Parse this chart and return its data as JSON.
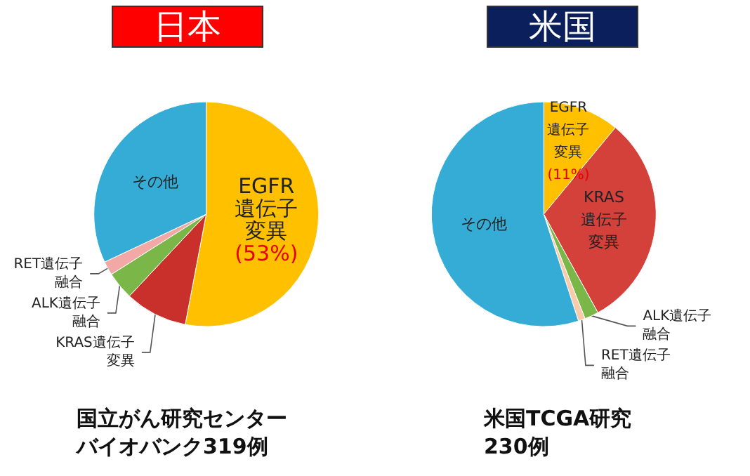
{
  "chart_data": [
    {
      "type": "pie",
      "title": "日本",
      "categories": [
        "EGFR遺伝子変異",
        "KRAS遺伝子変異",
        "ALK遺伝子融合",
        "RET遺伝子融合",
        "その他"
      ],
      "values": [
        53,
        9,
        4,
        2,
        32
      ],
      "value_labels": [
        "(53%)",
        null,
        null,
        null,
        null
      ],
      "colors": [
        "#ffc000",
        "#c9302c",
        "#7ab648",
        "#f2a9a5",
        "#35acd6"
      ],
      "annotations": [
        "国立がん研究センターバイオバンク319例"
      ]
    },
    {
      "type": "pie",
      "title": "米国",
      "categories": [
        "EGFR遺伝子変異",
        "KRAS遺伝子変異",
        "ALK遺伝子融合",
        "RET遺伝子融合",
        "その他"
      ],
      "values": [
        11,
        31,
        2,
        1,
        55
      ],
      "value_labels": [
        "(11%)",
        null,
        null,
        null,
        null
      ],
      "colors": [
        "#ffc000",
        "#d4403a",
        "#7ab648",
        "#f8cbad",
        "#35acd6"
      ],
      "annotations": [
        "米国TCGA研究230例"
      ]
    }
  ]
}
